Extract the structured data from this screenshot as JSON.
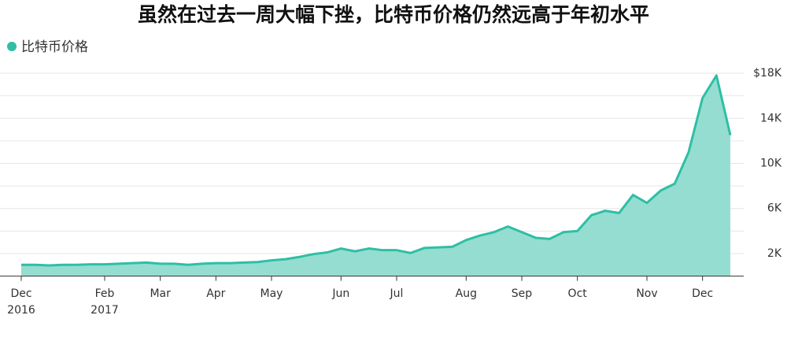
{
  "chart_data": {
    "type": "area",
    "title": "虽然在过去一周大幅下挫，比特币价格仍然远高于年初水平",
    "categories": [
      "Dec 2016",
      null,
      null,
      null,
      null,
      null,
      "Feb 2017",
      null,
      null,
      null,
      "Mar",
      null,
      null,
      null,
      "Apr",
      null,
      null,
      null,
      "May",
      null,
      null,
      null,
      null,
      "Jun",
      null,
      null,
      null,
      "Jul",
      null,
      null,
      null,
      null,
      "Aug",
      null,
      null,
      null,
      "Sep",
      null,
      null,
      null,
      "Oct",
      null,
      null,
      null,
      null,
      "Nov",
      null,
      null,
      null,
      "Dec",
      null,
      null
    ],
    "series": [
      {
        "name": "比特币价格",
        "color": "#2ebfa5",
        "fill": "#95ddd0",
        "values": [
          1000,
          1000,
          950,
          1000,
          1000,
          1050,
          1050,
          1100,
          1150,
          1200,
          1100,
          1100,
          1000,
          1100,
          1150,
          1150,
          1200,
          1250,
          1400,
          1500,
          1700,
          1950,
          2100,
          2450,
          2200,
          2450,
          2300,
          2300,
          2050,
          2500,
          2550,
          2600,
          3200,
          3600,
          3900,
          4400,
          3900,
          3400,
          3300,
          3900,
          4000,
          5400,
          5800,
          5600,
          7200,
          6500,
          7600,
          8200,
          11000,
          15800,
          17800,
          12500
        ]
      }
    ],
    "ylim": [
      0,
      19000
    ],
    "yticks": [
      {
        "value": 2000,
        "label": "2K"
      },
      {
        "value": 6000,
        "label": "6K"
      },
      {
        "value": 10000,
        "label": "10K"
      },
      {
        "value": 14000,
        "label": "14K"
      },
      {
        "value": 18000,
        "label": "$18K"
      }
    ],
    "minor_yticks": [
      4000,
      8000,
      12000,
      16000
    ],
    "grid": true,
    "legend": "top-left"
  }
}
